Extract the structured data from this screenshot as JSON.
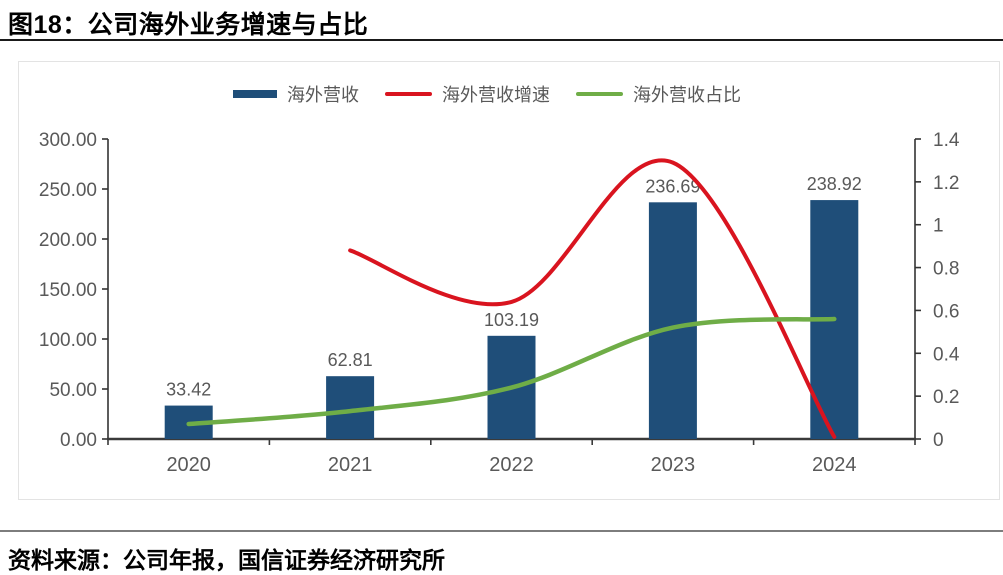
{
  "title": "图18：公司海外业务增速与占比",
  "source": "资料来源：公司年报，国信证券经济研究所",
  "colors": {
    "bar": "#1F4E79",
    "growth_line": "#D9141F",
    "share_line": "#6FAD47",
    "axis_text": "#595959",
    "label_text": "#595959",
    "axis_line": "#333333",
    "bottom_axis_line": "#3A3A3A",
    "frame_border": "#E3E3E3",
    "title_rule": "#1A1A1A",
    "source_rule": "#7D7D7D"
  },
  "chart_data": {
    "type": "combo_bar_line",
    "title": "图18：公司海外业务增速与占比",
    "categories": [
      "2020",
      "2021",
      "2022",
      "2023",
      "2024"
    ],
    "series": [
      {
        "name": "海外营收",
        "type": "bar",
        "axis": "left",
        "color": "#1F4E79",
        "values": [
          33.42,
          62.81,
          103.19,
          236.69,
          238.92
        ],
        "data_labels": [
          "33.42",
          "62.81",
          "103.19",
          "236.69",
          "238.92"
        ]
      },
      {
        "name": "海外营收增速",
        "type": "line",
        "axis": "right",
        "color": "#D9141F",
        "values": [
          null,
          0.88,
          0.64,
          1.29,
          0.01
        ]
      },
      {
        "name": "海外营收占比",
        "type": "line",
        "axis": "right",
        "color": "#6FAD47",
        "values": [
          0.07,
          0.13,
          0.24,
          0.52,
          0.56
        ]
      }
    ],
    "left_axis": {
      "min": 0,
      "max": 300,
      "step": 50,
      "tick_labels": [
        "300.00",
        "250.00",
        "200.00",
        "150.00",
        "100.00",
        "50.00",
        "0.00"
      ]
    },
    "right_axis": {
      "min": 0,
      "max": 1.4,
      "step": 0.2,
      "tick_labels": [
        "1.4",
        "1.2",
        "1",
        "0.8",
        "0.6",
        "0.4",
        "0.2",
        "0"
      ]
    },
    "legend_position": "top",
    "grid": false
  }
}
